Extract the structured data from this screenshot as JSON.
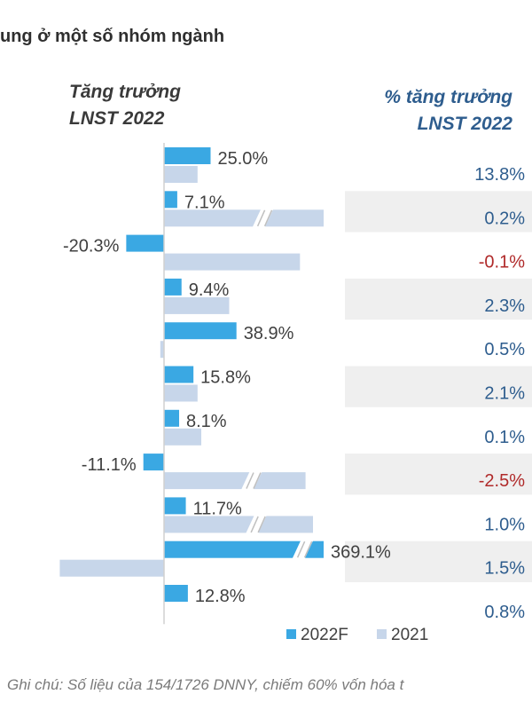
{
  "title": "ung ở một số nhóm ngành",
  "left_header": {
    "line1": "Tăng trưởng",
    "line2": "LNST 2022"
  },
  "right_header": {
    "line1": "% tăng trưởng",
    "line2": "LNST 2022"
  },
  "note": "Ghi chú: Số liệu của 154/1726 DNNY, chiếm 60% vốn hóa t",
  "colors": {
    "series_2022F": "#3aa8e3",
    "series_2021": "#c7d6ea",
    "band": "#efefef",
    "axis": "#d0d0d0",
    "positive_text": "#2e5d8e",
    "negative_text": "#b02a2a",
    "label_text": "#404040"
  },
  "chart_data": {
    "type": "bar",
    "orientation": "horizontal",
    "categories": [
      "",
      "",
      "",
      "",
      "",
      "",
      "",
      "",
      "",
      "",
      ""
    ],
    "series": [
      {
        "name": "2022F",
        "values": [
          25.0,
          7.1,
          -20.3,
          9.4,
          38.9,
          15.8,
          8.1,
          -11.1,
          11.7,
          369.1,
          12.8
        ],
        "labels": [
          "25.0%",
          "7.1%",
          "-20.3%",
          "9.4%",
          "38.9%",
          "15.8%",
          "8.1%",
          "-11.1%",
          "11.7%",
          "369.1%",
          "12.8%"
        ],
        "axis_breaks": [
          false,
          false,
          false,
          false,
          false,
          false,
          false,
          false,
          false,
          true,
          false
        ]
      },
      {
        "name": "2021",
        "values": [
          18.0,
          91.0,
          73.0,
          35.0,
          -2.0,
          18.0,
          20.0,
          76.0,
          80.0,
          -56.0,
          0.0
        ],
        "axis_breaks": [
          false,
          true,
          false,
          false,
          false,
          false,
          false,
          true,
          true,
          false,
          false
        ]
      }
    ],
    "right_column": {
      "values": [
        13.8,
        0.2,
        -0.1,
        2.3,
        0.5,
        2.1,
        0.1,
        -2.5,
        1.0,
        1.5,
        0.8
      ],
      "labels": [
        "13.8%",
        "0.2%",
        "-0.1%",
        "2.3%",
        "0.5%",
        "2.1%",
        "0.1%",
        "-2.5%",
        "1.0%",
        "1.5%",
        "0.8%"
      ]
    },
    "legend": {
      "placement": "bottom-right",
      "entries": [
        "2022F",
        "2021"
      ]
    },
    "grid": false,
    "alternating_row_bands": true
  }
}
